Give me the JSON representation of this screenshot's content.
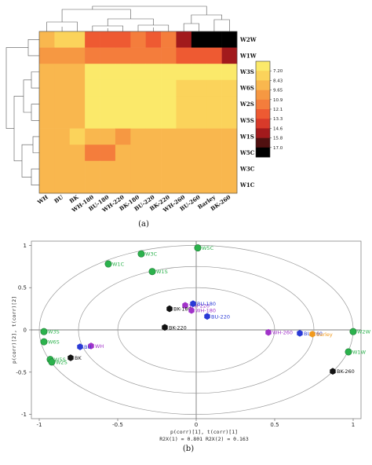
{
  "figure_labels": {
    "a": "(a)",
    "b": "(b)"
  },
  "chart_data": [
    {
      "type": "heatmap",
      "columns": [
        "WH",
        "BU",
        "BK",
        "WH-180",
        "BU-180",
        "WH-220",
        "BK-180",
        "BU-220",
        "BK-220",
        "WH-260",
        "BU-260",
        "Barley",
        "BK-260"
      ],
      "rows": [
        "W2W",
        "W1W",
        "W3S",
        "W6S",
        "W2S",
        "W5S",
        "W1S",
        "W5C",
        "W3C",
        "W1C"
      ],
      "values": [
        [
          9.3,
          8.2,
          8.2,
          12.8,
          12.8,
          12.8,
          11.5,
          12.8,
          11.5,
          14.8,
          16.5,
          16.5,
          16.5
        ],
        [
          10.2,
          10.2,
          10.2,
          12.0,
          11.2,
          12.0,
          12.0,
          12.0,
          12.0,
          13.0,
          13.0,
          13.0,
          14.6
        ],
        [
          9.4,
          9.4,
          9.4,
          7.7,
          7.7,
          7.7,
          7.7,
          7.7,
          7.7,
          7.6,
          7.3,
          7.3,
          7.3
        ],
        [
          9.4,
          9.4,
          9.4,
          7.6,
          7.6,
          7.6,
          7.6,
          7.6,
          7.6,
          8.7,
          8.7,
          8.7,
          8.7
        ],
        [
          9.4,
          9.4,
          9.4,
          7.3,
          7.3,
          7.3,
          7.3,
          7.3,
          7.3,
          8.7,
          8.7,
          8.7,
          8.7
        ],
        [
          9.4,
          9.4,
          9.4,
          7.3,
          7.3,
          7.3,
          7.3,
          7.3,
          7.3,
          8.7,
          8.7,
          8.7,
          8.7
        ],
        [
          9.4,
          9.4,
          8.2,
          9.4,
          9.4,
          10.8,
          9.4,
          9.4,
          9.4,
          9.4,
          9.4,
          9.4,
          9.4
        ],
        [
          9.4,
          9.4,
          9.4,
          11.2,
          11.2,
          9.6,
          9.6,
          9.6,
          9.6,
          9.6,
          9.6,
          9.6,
          9.6
        ],
        [
          9.4,
          9.4,
          9.4,
          9.4,
          9.4,
          9.4,
          9.4,
          9.4,
          9.4,
          9.4,
          9.4,
          9.4,
          9.4
        ],
        [
          9.4,
          9.4,
          9.4,
          9.4,
          9.4,
          9.4,
          9.4,
          9.4,
          9.4,
          9.4,
          9.4,
          9.4,
          9.4
        ]
      ],
      "color_scale": {
        "ticks": [
          "7.20",
          "8.43",
          "9.65",
          "10.9",
          "12.1",
          "13.3",
          "14.6",
          "15.8",
          "17.0"
        ],
        "min": 7.2,
        "max": 17.0,
        "colors": [
          "#fbe96a",
          "#fbd35b",
          "#f9b74e",
          "#f69842",
          "#f47d3c",
          "#ee5a32",
          "#d93a2a",
          "#a21a1c",
          "#501010",
          "#000000"
        ]
      }
    },
    {
      "type": "scatter",
      "xlim": [
        -1.05,
        1.05
      ],
      "ylim": [
        -1.05,
        1.05
      ],
      "x_ticks": [
        "-1",
        "-0.5",
        "0",
        "0.5",
        "1"
      ],
      "y_ticks": [
        "-1",
        "-0.5",
        "0",
        "0.5",
        "1"
      ],
      "xlabel": "p(corr)[1], t(corr)[1]",
      "ylabel": "p(corr)[2], t(corr)[2]",
      "annotation": "R2X(1) = 0.801  R2X(2) = 0.163",
      "ellipse_radii": [
        1.0,
        0.75,
        0.5
      ],
      "colors": {
        "variable": "#2bb24c",
        "BK": "#111111",
        "BU": "#2a3ad6",
        "WH": "#a133c9",
        "Barley": "#f29a1c"
      },
      "points": [
        {
          "label": "W5C",
          "x": 0.01,
          "y": 0.97,
          "group": "variable"
        },
        {
          "label": "W3C",
          "x": -0.35,
          "y": 0.9,
          "group": "variable"
        },
        {
          "label": "W1C",
          "x": -0.56,
          "y": 0.78,
          "group": "variable"
        },
        {
          "label": "W1S",
          "x": -0.28,
          "y": 0.69,
          "group": "variable"
        },
        {
          "label": "W3S",
          "x": -0.97,
          "y": -0.02,
          "group": "variable"
        },
        {
          "label": "W6S",
          "x": -0.97,
          "y": -0.14,
          "group": "variable"
        },
        {
          "label": "W5S",
          "x": -0.93,
          "y": -0.35,
          "group": "variable"
        },
        {
          "label": "W2S",
          "x": -0.92,
          "y": -0.38,
          "group": "variable"
        },
        {
          "label": "W2W",
          "x": 1.0,
          "y": -0.02,
          "group": "variable"
        },
        {
          "label": "W1W",
          "x": 0.97,
          "y": -0.26,
          "group": "variable"
        },
        {
          "label": "WH-220",
          "x": -0.07,
          "y": 0.29,
          "group": "WH"
        },
        {
          "label": "BU-180",
          "x": -0.02,
          "y": 0.31,
          "group": "BU"
        },
        {
          "label": "BK-180",
          "x": -0.17,
          "y": 0.25,
          "group": "BK"
        },
        {
          "label": "WH-180",
          "x": -0.03,
          "y": 0.23,
          "group": "WH"
        },
        {
          "label": "BU-220",
          "x": 0.07,
          "y": 0.16,
          "group": "BU"
        },
        {
          "label": "BK-220",
          "x": -0.2,
          "y": 0.03,
          "group": "BK"
        },
        {
          "label": "WH-260",
          "x": 0.46,
          "y": -0.03,
          "group": "WH"
        },
        {
          "label": "BU-260",
          "x": 0.66,
          "y": -0.04,
          "group": "BU"
        },
        {
          "label": "Barley",
          "x": 0.74,
          "y": -0.05,
          "group": "Barley"
        },
        {
          "label": "WH",
          "x": -0.67,
          "y": -0.19,
          "group": "WH"
        },
        {
          "label": "BU",
          "x": -0.74,
          "y": -0.2,
          "group": "BU"
        },
        {
          "label": "BK",
          "x": -0.8,
          "y": -0.33,
          "group": "BK"
        },
        {
          "label": "BK-260",
          "x": 0.87,
          "y": -0.49,
          "group": "BK"
        }
      ]
    }
  ]
}
